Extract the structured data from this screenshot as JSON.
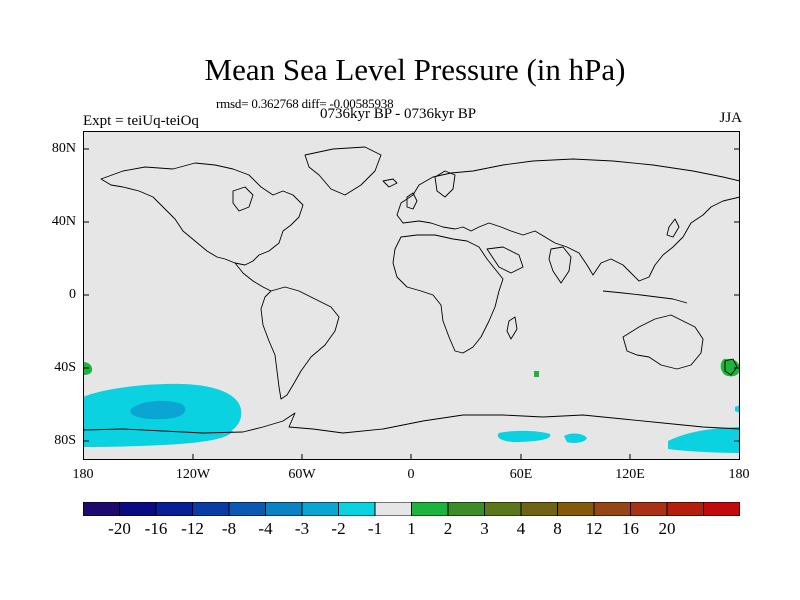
{
  "title": "Mean Sea Level Pressure (in hPa)",
  "stats_line": "rmsd= 0.362768 diff= -0.00585938",
  "period": "0736kyr BP - 0736kyr BP",
  "experiment": "Expt = teiUq-teiOq",
  "season": "JJA",
  "map": {
    "background_color": "#e6e6e6",
    "lat_labels": [
      "80N",
      "40N",
      "0",
      "40S",
      "80S"
    ],
    "lon_labels": [
      "180",
      "120W",
      "60W",
      "0",
      "60E",
      "120E",
      "180"
    ]
  },
  "colorbar": {
    "colors": [
      "#1e0a6e",
      "#0a0a82",
      "#0a1e96",
      "#0a3ca5",
      "#0a5ab4",
      "#0a82c3",
      "#0aa5d2",
      "#0ad2e1",
      "#e6e6e6",
      "#1eb43c",
      "#3c8c28",
      "#5a7819",
      "#6e6414",
      "#825a0a",
      "#964614",
      "#aa3214",
      "#b41e0a",
      "#c30a0a"
    ],
    "labels": [
      "-20",
      "-16",
      "-12",
      "-8",
      "-4",
      "-3",
      "-2",
      "-1",
      "1",
      "2",
      "3",
      "4",
      "8",
      "12",
      "16",
      "20"
    ]
  }
}
